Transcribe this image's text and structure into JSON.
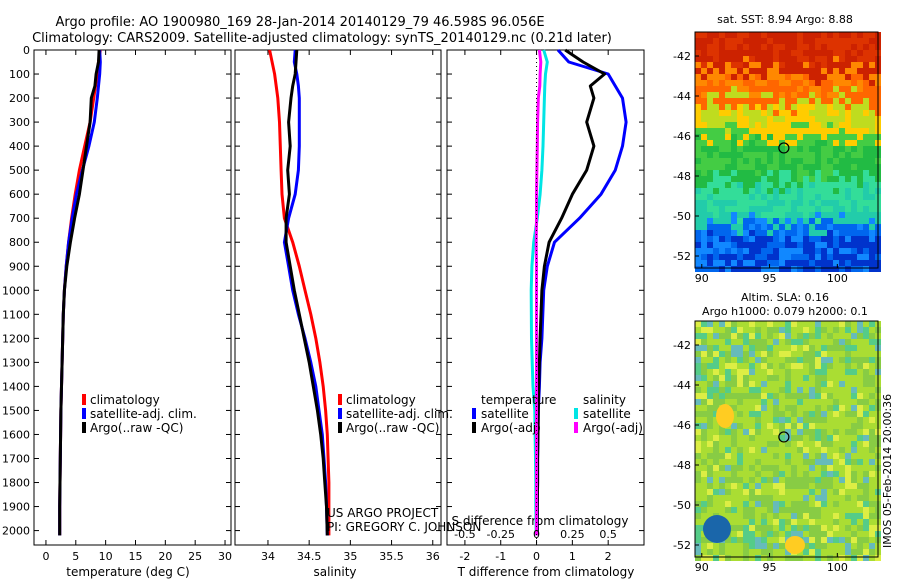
{
  "header": {
    "line1": "Argo profile: AO 1900980_169 28-Jan-2014 20140129_79 46.598S 96.056E",
    "line2": "Climatology: CARS2009. Satellite-adjusted climatology: synTS_20140129.nc (0.21d later)"
  },
  "chart_data": [
    {
      "type": "line",
      "xlabel": "temperature (deg C)",
      "xlim": [
        -2,
        31
      ],
      "xticks": [
        0,
        5,
        10,
        15,
        20,
        25,
        30
      ],
      "ylim": [
        0,
        2060
      ],
      "yticks": [
        0,
        100,
        200,
        300,
        400,
        500,
        600,
        700,
        800,
        900,
        1000,
        1100,
        1200,
        1300,
        1400,
        1500,
        1600,
        1700,
        1800,
        1900,
        2000
      ],
      "yreversed": true,
      "legend": [
        "climatology",
        "satellite-adj. clim.",
        "Argo(..raw -QC)"
      ],
      "series": [
        {
          "name": "climatology",
          "color": "#ff0000",
          "x": [
            9.1,
            8.8,
            8.6,
            8.3,
            8.0,
            7.4,
            6.5,
            5.6,
            4.9,
            4.3,
            3.8,
            3.4,
            3.1,
            2.9,
            2.8,
            2.7,
            2.6,
            2.5,
            2.45,
            2.4,
            2.35,
            2.3,
            2.3
          ],
          "y": [
            0,
            50,
            100,
            150,
            200,
            300,
            400,
            500,
            600,
            700,
            800,
            900,
            1000,
            1100,
            1200,
            1300,
            1400,
            1500,
            1600,
            1700,
            1800,
            1900,
            2020
          ]
        },
        {
          "name": "satellite-adj. clim.",
          "color": "#0000ff",
          "x": [
            9.0,
            9.1,
            9.0,
            8.8,
            8.6,
            8.1,
            7.2,
            6.1,
            5.1,
            4.4,
            3.8,
            3.4,
            3.1,
            2.9,
            2.8,
            2.7,
            2.6,
            2.5,
            2.45,
            2.4,
            2.35,
            2.3,
            2.3
          ],
          "y": [
            0,
            50,
            100,
            150,
            200,
            300,
            400,
            500,
            600,
            700,
            800,
            900,
            1000,
            1100,
            1200,
            1300,
            1400,
            1500,
            1600,
            1700,
            1800,
            1900,
            2020
          ]
        },
        {
          "name": "Argo(..raw -QC)",
          "color": "#000000",
          "x": [
            8.9,
            8.8,
            8.4,
            8.2,
            7.6,
            7.4,
            6.8,
            6.2,
            5.6,
            4.8,
            4.1,
            3.5,
            3.1,
            2.9,
            2.8,
            2.7,
            2.6,
            2.5,
            2.45,
            2.4,
            2.35,
            2.3,
            2.3
          ],
          "y": [
            0,
            50,
            100,
            150,
            200,
            300,
            400,
            500,
            600,
            700,
            800,
            900,
            1000,
            1100,
            1200,
            1300,
            1400,
            1500,
            1600,
            1700,
            1800,
            1900,
            2020
          ]
        }
      ]
    },
    {
      "type": "line",
      "xlabel": "salinity",
      "xlim": [
        33.6,
        36.1
      ],
      "xticks": [
        34,
        34.5,
        35,
        35.5,
        36
      ],
      "ylim": [
        0,
        2060
      ],
      "yreversed": true,
      "legend": [
        "climatology",
        "satellite-adj. clim.",
        "Argo(..raw -QC)"
      ],
      "series": [
        {
          "name": "climatology",
          "color": "#ff0000",
          "x": [
            34.02,
            34.05,
            34.08,
            34.1,
            34.12,
            34.14,
            34.15,
            34.16,
            34.17,
            34.2,
            34.3,
            34.38,
            34.45,
            34.52,
            34.58,
            34.63,
            34.67,
            34.7,
            34.72,
            34.73,
            34.74,
            34.74,
            34.74
          ],
          "y": [
            0,
            50,
            100,
            150,
            200,
            300,
            400,
            500,
            600,
            700,
            800,
            900,
            1000,
            1100,
            1200,
            1300,
            1400,
            1500,
            1600,
            1700,
            1800,
            1900,
            2020
          ]
        },
        {
          "name": "satellite-adj. clim.",
          "color": "#0000ff",
          "x": [
            34.33,
            34.32,
            34.35,
            34.37,
            34.38,
            34.38,
            34.38,
            34.37,
            34.33,
            34.25,
            34.2,
            34.25,
            34.3,
            34.37,
            34.45,
            34.52,
            34.58,
            34.62,
            34.66,
            34.68,
            34.7,
            34.71,
            34.72
          ],
          "y": [
            0,
            50,
            100,
            150,
            200,
            300,
            400,
            500,
            600,
            700,
            800,
            900,
            1000,
            1100,
            1200,
            1300,
            1400,
            1500,
            1600,
            1700,
            1800,
            1900,
            2020
          ]
        },
        {
          "name": "Argo(..raw -QC)",
          "color": "#000000",
          "x": [
            34.35,
            34.34,
            34.33,
            34.3,
            34.28,
            34.25,
            34.27,
            34.24,
            34.26,
            34.22,
            34.22,
            34.27,
            34.32,
            34.38,
            34.44,
            34.5,
            34.55,
            34.6,
            34.64,
            34.67,
            34.69,
            34.71,
            34.72
          ],
          "y": [
            0,
            50,
            100,
            150,
            200,
            300,
            400,
            500,
            600,
            700,
            800,
            900,
            1000,
            1100,
            1200,
            1300,
            1400,
            1500,
            1600,
            1700,
            1800,
            1900,
            2020
          ]
        }
      ]
    },
    {
      "type": "line",
      "xlabel": "T difference from climatology",
      "xlim": [
        -2.5,
        3
      ],
      "xticks": [
        -2,
        -1,
        0,
        1,
        2
      ],
      "ylim": [
        0,
        2060
      ],
      "yreversed": true,
      "secondary_axis": {
        "label": "S difference from climatology",
        "ticks": [
          "-0.5",
          "-0.25",
          "0",
          "0.25",
          "0.5"
        ],
        "values": [
          -0.5,
          -0.25,
          0,
          0.25,
          0.5
        ],
        "span": [
          -0.625,
          0.75
        ]
      },
      "legend_left_title": "temperature",
      "legend_right_title": "salinity",
      "legend": [
        "satellite",
        "Argo(-adj)",
        "satellite",
        "Argo(-adj)"
      ],
      "series": [
        {
          "name": "satellite",
          "color": "#0000ff",
          "x": [
            0.6,
            0.9,
            2.0,
            2.2,
            2.4,
            2.5,
            2.4,
            2.2,
            1.8,
            1.2,
            0.5,
            0.3,
            0.2,
            0.15,
            0.1,
            0.08,
            0.05,
            0.04,
            0.03,
            0.03,
            0.02,
            0.02
          ],
          "y": [
            0,
            50,
            100,
            150,
            200,
            300,
            400,
            500,
            600,
            700,
            800,
            900,
            1000,
            1200,
            1300,
            1400,
            1500,
            1600,
            1700,
            1800,
            1900,
            2020
          ]
        },
        {
          "name": "Argo(-adj)",
          "color": "#000000",
          "x": [
            0.8,
            1.3,
            1.9,
            1.5,
            1.6,
            1.4,
            1.6,
            1.4,
            1.0,
            0.7,
            0.35,
            0.22,
            0.15,
            0.1,
            0.08,
            0.06,
            0.05,
            0.04,
            0.03,
            0.03,
            0.02,
            0.02
          ],
          "y": [
            0,
            50,
            100,
            150,
            200,
            300,
            400,
            500,
            600,
            700,
            800,
            900,
            1000,
            1200,
            1300,
            1400,
            1500,
            1600,
            1700,
            1800,
            1900,
            2020
          ]
        },
        {
          "name": "satellite",
          "color": "#00e5e5",
          "x": [
            0.2,
            0.3,
            0.25,
            0.23,
            0.22,
            0.2,
            0.18,
            0.15,
            0.1,
            0.02,
            -0.08,
            -0.13,
            -0.15,
            -0.14,
            -0.12,
            -0.1,
            -0.05,
            -0.04,
            -0.03,
            -0.02,
            -0.02,
            -0.01
          ],
          "y": [
            0,
            50,
            100,
            150,
            200,
            300,
            400,
            500,
            600,
            700,
            800,
            900,
            1000,
            1200,
            1300,
            1400,
            1500,
            1600,
            1700,
            1800,
            1900,
            2020
          ]
        },
        {
          "name": "Argo(-adj)",
          "color": "#ff00ff",
          "x": [
            0.08,
            0.12,
            0.1,
            0.09,
            0.05,
            0.03,
            0.02,
            0.01,
            0,
            0,
            -0.01,
            0,
            0,
            0,
            0,
            0,
            0,
            0,
            0,
            0,
            0,
            0
          ],
          "y": [
            0,
            50,
            100,
            150,
            200,
            300,
            400,
            500,
            600,
            700,
            800,
            900,
            1000,
            1200,
            1300,
            1400,
            1500,
            1600,
            1700,
            1800,
            1900,
            2020
          ]
        }
      ]
    },
    {
      "type": "heatmap",
      "title": "sat. SST: 8.94 Argo: 8.88",
      "xticks": [
        90,
        95,
        100
      ],
      "yticks": [
        -42,
        -44,
        -46,
        -48,
        -50,
        -52
      ],
      "xlim": [
        89.5,
        103
      ],
      "ylim": [
        -52.6,
        -40.8
      ],
      "marker": {
        "lon": 96.056,
        "lat": -46.598
      }
    },
    {
      "type": "heatmap",
      "title_line1": "Altim. SLA: 0.16",
      "title_line2": "Argo h1000: 0.079 h2000: 0.1",
      "xticks": [
        90,
        95,
        100
      ],
      "yticks": [
        -42,
        -44,
        -46,
        -48,
        -50,
        -52
      ],
      "xlim": [
        89.5,
        103
      ],
      "ylim": [
        -52.6,
        -40.8
      ],
      "marker": {
        "lon": 96.056,
        "lat": -46.598
      }
    }
  ],
  "annotations": {
    "project_line1": "US ARGO PROJECT",
    "project_line2": "PI: GREGORY C. JOHNSON",
    "stamp": "IMOS 05-Feb-2014 20:00:36"
  },
  "colors": {
    "red": "#ff0000",
    "blue": "#0000ff",
    "cyan": "#00e5e5",
    "magenta": "#ff00ff",
    "black": "#000000"
  }
}
